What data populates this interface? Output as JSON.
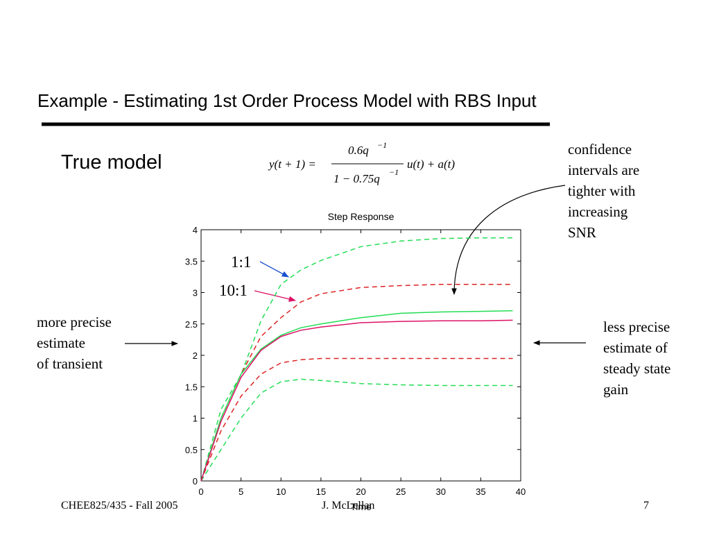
{
  "slide": {
    "title": "Example - Estimating 1st Order Process Model with RBS Input",
    "subtitle": "True model",
    "equation": {
      "lhs": "y(t + 1) =",
      "numerator": "0.6q",
      "numerator_exp": "−1",
      "denominator": "1 − 0.75q",
      "denominator_exp": "−1",
      "rhs": "u(t) + a(t)"
    },
    "note_left": [
      "more precise",
      "estimate",
      "of transient"
    ],
    "note_top_right": [
      "confidence",
      "intervals are",
      "tighter with",
      "increasing",
      "SNR"
    ],
    "note_right": [
      "less precise",
      "estimate of",
      "steady state",
      "gain"
    ],
    "footer": {
      "left": "CHEE825/435 - Fall 2005",
      "center": "J. McLellan",
      "right": "7"
    }
  },
  "chart_data": {
    "type": "line",
    "title": "Step Response",
    "x_label": "Time",
    "annotations": [
      "1:1",
      "10:1"
    ],
    "x": [
      0,
      2.5,
      5,
      7.5,
      10,
      12.5,
      15,
      20,
      25,
      30,
      35,
      39
    ],
    "series": [
      {
        "color": "#22dd55",
        "dashed": true,
        "values": [
          0,
          1.14,
          1.69,
          2.55,
          3.13,
          3.36,
          3.51,
          3.73,
          3.82,
          3.86,
          3.87,
          3.87
        ]
      },
      {
        "color": "#22dd55",
        "dashed": true,
        "values": [
          0,
          0.5,
          1.0,
          1.4,
          1.58,
          1.62,
          1.6,
          1.55,
          1.53,
          1.52,
          1.52,
          1.52
        ]
      },
      {
        "color": "#dd2222",
        "dashed": true,
        "values": [
          0,
          1.0,
          1.7,
          2.3,
          2.6,
          2.85,
          2.98,
          3.08,
          3.11,
          3.13,
          3.13,
          3.13
        ]
      },
      {
        "color": "#dd2222",
        "dashed": true,
        "values": [
          0,
          0.8,
          1.35,
          1.7,
          1.88,
          1.93,
          1.95,
          1.95,
          1.95,
          1.95,
          1.95,
          1.95
        ]
      },
      {
        "color": "#22dd55",
        "dashed": false,
        "values": [
          0,
          1.0,
          1.7,
          2.1,
          2.32,
          2.44,
          2.5,
          2.6,
          2.67,
          2.69,
          2.7,
          2.71
        ]
      },
      {
        "color": "#dd1166",
        "dashed": false,
        "values": [
          0,
          0.95,
          1.65,
          2.08,
          2.3,
          2.4,
          2.45,
          2.52,
          2.54,
          2.55,
          2.55,
          2.56
        ]
      }
    ],
    "xlim": [
      0,
      40
    ],
    "xticks": [
      0,
      5,
      10,
      15,
      20,
      25,
      30,
      35,
      40
    ],
    "ylim": [
      0,
      4
    ],
    "yticks": [
      0,
      0.5,
      1,
      1.5,
      2,
      2.5,
      3,
      3.5,
      4
    ]
  }
}
